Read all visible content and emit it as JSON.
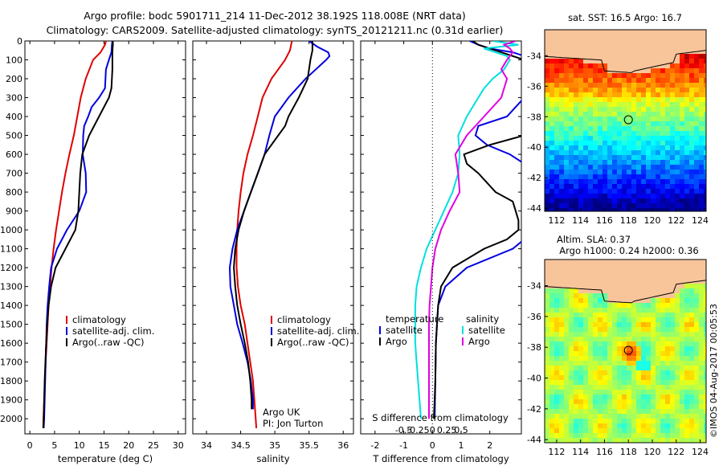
{
  "header": {
    "title_line1": "Argo profile: bodc 5901711_214 11-Dec-2012 38.192S 118.008E (NRT data)",
    "title_line2": "Climatology: CARS2009. Satellite-adjusted climatology: synTS_20121211.nc (0.31d earlier)"
  },
  "credit": "©IMOS 04-Aug-2017 00:05:53",
  "chart_data": [
    {
      "id": "temperature",
      "type": "line",
      "xlabel": "temperature (deg C)",
      "ylim": [
        2080,
        0
      ],
      "xlim": [
        -1,
        31.5
      ],
      "xticks": [
        "0",
        "5",
        "10",
        "15",
        "20",
        "25",
        "30"
      ],
      "yticks": [
        "0",
        "100",
        "200",
        "300",
        "400",
        "500",
        "600",
        "700",
        "800",
        "900",
        "1000",
        "1100",
        "1200",
        "1300",
        "1400",
        "1500",
        "1600",
        "1700",
        "1800",
        "1900",
        "2000"
      ],
      "legend": [
        "climatology",
        "satellite-adj. clim.",
        "Argo(..raw -QC)"
      ],
      "series": [
        {
          "name": "climatology",
          "color": "#e00000",
          "depth": [
            0,
            20,
            60,
            100,
            200,
            300,
            400,
            500,
            600,
            700,
            800,
            900,
            1000,
            1100,
            1200,
            1300,
            1400,
            1500,
            1600,
            1700,
            1800,
            1900,
            2000,
            2050
          ],
          "values": [
            15.4,
            15.2,
            14.3,
            12.8,
            11.3,
            10.3,
            9.6,
            8.9,
            8.0,
            7.2,
            6.5,
            5.9,
            5.3,
            4.8,
            4.4,
            4.1,
            3.8,
            3.6,
            3.4,
            3.2,
            3.05,
            2.9,
            2.75,
            2.7
          ]
        },
        {
          "name": "satellite-adj. clim.",
          "color": "#0000e0",
          "depth": [
            0,
            20,
            60,
            100,
            150,
            200,
            250,
            300,
            350,
            400,
            450,
            500,
            600,
            700,
            800,
            900,
            1000,
            1100,
            1200,
            1300,
            1400,
            1500,
            1600,
            1700,
            1800,
            1900,
            2000,
            2050
          ],
          "values": [
            16.7,
            16.6,
            16.5,
            16.0,
            15.4,
            15.3,
            15.2,
            14.0,
            12.5,
            11.8,
            11.0,
            10.8,
            10.7,
            11.3,
            11.4,
            10.0,
            7.5,
            5.5,
            4.3,
            3.9,
            3.6,
            3.4,
            3.3,
            3.2,
            3.1,
            3.0,
            2.9,
            2.8
          ]
        },
        {
          "name": "Argo(..raw -QC)",
          "color": "#000000",
          "depth": [
            0,
            20,
            60,
            100,
            150,
            200,
            250,
            300,
            400,
            500,
            600,
            700,
            800,
            900,
            1000,
            1100,
            1200,
            1300,
            1400,
            1500,
            1600,
            1700,
            1800,
            1900,
            2000,
            2050
          ],
          "values": [
            16.8,
            16.8,
            16.7,
            16.7,
            16.7,
            16.6,
            16.5,
            16.0,
            14.0,
            12.0,
            10.6,
            10.2,
            10.0,
            9.8,
            9.2,
            7.2,
            5.2,
            4.3,
            3.8,
            3.5,
            3.3,
            3.15,
            3.0,
            2.9,
            2.8,
            2.75
          ]
        }
      ]
    },
    {
      "id": "salinity",
      "type": "line",
      "xlabel": "salinity",
      "ylim": [
        2080,
        0
      ],
      "xlim": [
        33.8,
        36.15
      ],
      "xticks": [
        "34",
        "34.5",
        "35",
        "35.5",
        "36"
      ],
      "legend": [
        "climatology",
        "satellite-adj. clim.",
        "Argo(..raw -QC)"
      ],
      "annotation_line1": "Argo UK",
      "annotation_line2": "PI: Jon Turton",
      "series": [
        {
          "name": "climatology",
          "color": "#e00000",
          "depth": [
            0,
            50,
            100,
            150,
            200,
            300,
            400,
            500,
            600,
            700,
            800,
            900,
            1000,
            1100,
            1200,
            1300,
            1400,
            1500,
            1600,
            1700,
            1800,
            1900,
            2000,
            2050
          ],
          "values": [
            35.25,
            35.22,
            35.15,
            35.05,
            34.95,
            34.82,
            34.75,
            34.68,
            34.6,
            34.54,
            34.5,
            34.47,
            34.45,
            34.44,
            34.44,
            34.46,
            34.5,
            34.56,
            34.6,
            34.64,
            34.68,
            34.7,
            34.72,
            34.73
          ]
        },
        {
          "name": "satellite-adj. clim.",
          "color": "#0000e0",
          "depth": [
            0,
            30,
            60,
            80,
            100,
            150,
            200,
            300,
            400,
            500,
            600,
            700,
            800,
            900,
            1000,
            1100,
            1200,
            1300,
            1400,
            1500,
            1600,
            1700,
            1800,
            1900,
            1950
          ],
          "values": [
            35.5,
            35.62,
            35.78,
            35.8,
            35.75,
            35.6,
            35.45,
            35.2,
            35.0,
            34.92,
            34.85,
            34.75,
            34.65,
            34.55,
            34.45,
            34.38,
            34.34,
            34.35,
            34.4,
            34.45,
            34.53,
            34.6,
            34.65,
            34.68,
            34.68
          ]
        },
        {
          "name": "Argo(..raw -QC)",
          "color": "#000000",
          "depth": [
            0,
            50,
            100,
            200,
            300,
            400,
            450,
            500,
            600,
            700,
            800,
            900,
            1000,
            1100,
            1200,
            1300,
            1400,
            1500,
            1600,
            1700,
            1800,
            1900,
            1950
          ],
          "values": [
            35.55,
            35.55,
            35.52,
            35.48,
            35.35,
            35.2,
            35.15,
            35.05,
            34.85,
            34.75,
            34.65,
            34.55,
            34.47,
            34.42,
            34.4,
            34.42,
            34.45,
            34.5,
            34.56,
            34.61,
            34.64,
            34.66,
            34.66
          ]
        }
      ]
    },
    {
      "id": "difference",
      "type": "line",
      "xlabel": "T difference from climatology",
      "xlabel_top": "S difference from climatology",
      "ylim": [
        2080,
        0
      ],
      "xlim": [
        -2.5,
        3.1
      ],
      "xticks": [
        "-2",
        "-1",
        "0",
        "1",
        "2"
      ],
      "xticks_s": [
        "-0.5",
        "-0.25",
        "0",
        "0.25",
        "0.5"
      ],
      "legend_temperature": {
        "title": "temperature",
        "items": [
          "satellite",
          "Argo"
        ]
      },
      "legend_salinity": {
        "title": "salinity",
        "items": [
          "satellite",
          "Argo"
        ]
      },
      "series": [
        {
          "name": "temperature satellite",
          "color": "#0000e0",
          "depth": [
            0,
            20,
            40,
            60,
            80,
            100,
            200,
            300,
            400,
            450,
            500,
            550,
            600,
            650,
            700,
            800,
            900,
            1000,
            1050,
            1100,
            1200,
            1300,
            1400,
            1600,
            1800,
            2000
          ],
          "values": [
            1.3,
            1.6,
            2.0,
            2.8,
            3.2,
            3.2,
            3.2,
            3.2,
            2.6,
            1.6,
            1.5,
            1.9,
            2.7,
            3.2,
            3.2,
            3.2,
            3.2,
            3.2,
            3.2,
            2.8,
            1.2,
            0.45,
            0.2,
            0.12,
            0.1,
            0.08
          ]
        },
        {
          "name": "temperature Argo",
          "color": "#000000",
          "depth": [
            0,
            20,
            60,
            100,
            200,
            300,
            400,
            450,
            500,
            550,
            600,
            650,
            700,
            800,
            850,
            900,
            950,
            1000,
            1050,
            1100,
            1200,
            1300,
            1400,
            1600,
            1800,
            2000
          ],
          "values": [
            1.4,
            1.6,
            2.4,
            3.2,
            3.2,
            3.2,
            3.2,
            3.2,
            3.2,
            2.0,
            1.1,
            1.2,
            1.6,
            2.2,
            2.8,
            2.9,
            3.0,
            3.0,
            2.6,
            1.8,
            0.7,
            0.3,
            0.2,
            0.12,
            0.1,
            0.05
          ]
        },
        {
          "name": "salinity satellite",
          "color": "#00e0e0",
          "depth": [
            0,
            20,
            40,
            80,
            100,
            150,
            200,
            250,
            300,
            400,
            500,
            600,
            700,
            800,
            900,
            1000,
            1100,
            1200,
            1300,
            1400,
            1500,
            1600,
            1700,
            1800,
            1900,
            2000
          ],
          "values": [
            2.1,
            3.0,
            1.8,
            2.6,
            2.7,
            2.5,
            2.1,
            1.8,
            1.6,
            1.2,
            0.9,
            0.95,
            0.9,
            0.7,
            0.4,
            0.1,
            -0.2,
            -0.4,
            -0.55,
            -0.6,
            -0.6,
            -0.6,
            -0.55,
            -0.5,
            -0.45,
            -0.4
          ]
        },
        {
          "name": "salinity Argo",
          "color": "#e000e0",
          "depth": [
            0,
            20,
            40,
            60,
            100,
            150,
            200,
            300,
            400,
            500,
            600,
            700,
            800,
            900,
            1000,
            1100,
            1200,
            1300,
            1400,
            1500,
            1600,
            1700,
            1800,
            1900,
            2000
          ],
          "values": [
            2.9,
            2.5,
            2.7,
            2.8,
            2.6,
            2.4,
            2.6,
            2.4,
            1.8,
            1.2,
            0.8,
            0.9,
            0.95,
            0.6,
            0.3,
            0.1,
            0.0,
            -0.05,
            -0.1,
            -0.12,
            -0.12,
            -0.12,
            -0.12,
            -0.12,
            -0.12
          ]
        }
      ]
    },
    {
      "id": "sst_map",
      "type": "heatmap",
      "title": "sat. SST: 16.5  Argo: 16.7",
      "xlim": [
        111,
        124.5
      ],
      "ylim": [
        -44.2,
        -32.3
      ],
      "xticks": [
        "112",
        "114",
        "116",
        "118",
        "120",
        "122",
        "124"
      ],
      "yticks": [
        "-34",
        "-36",
        "-38",
        "-40",
        "-42",
        "-44"
      ],
      "marker": {
        "lon": 118.0,
        "lat": -38.2
      }
    },
    {
      "id": "sla_map",
      "type": "heatmap",
      "title_line1": "Altim. SLA: 0.37",
      "title_line2": "Argo h1000: 0.24  h2000: 0.36",
      "xlim": [
        111,
        124.5
      ],
      "ylim": [
        -44.2,
        -32.3
      ],
      "xticks": [
        "112",
        "114",
        "116",
        "118",
        "120",
        "122",
        "124"
      ],
      "yticks": [
        "-34",
        "-36",
        "-38",
        "-40",
        "-42",
        "-44"
      ],
      "marker": {
        "lon": 118.0,
        "lat": -38.2
      }
    }
  ]
}
